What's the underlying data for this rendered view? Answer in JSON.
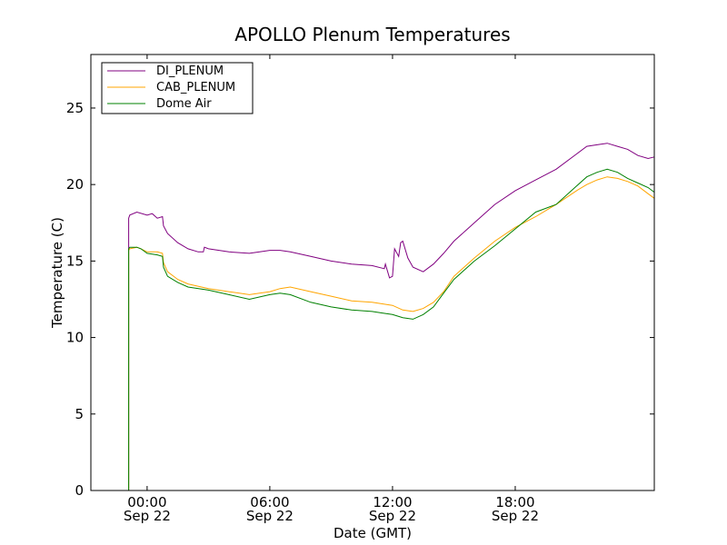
{
  "chart_data": {
    "type": "line",
    "title": "APOLLO Plenum Temperatures",
    "xlabel": "Date (GMT)",
    "ylabel": "Temperature (C)",
    "xlim": [
      -2.75,
      24.8
    ],
    "ylim": [
      0,
      28.5
    ],
    "grid": false,
    "legend_position": "top-left",
    "y_ticks": [
      {
        "value": 0,
        "label": "0"
      },
      {
        "value": 5,
        "label": "5"
      },
      {
        "value": 10,
        "label": "10"
      },
      {
        "value": 15,
        "label": "15"
      },
      {
        "value": 20,
        "label": "20"
      },
      {
        "value": 25,
        "label": "25"
      }
    ],
    "x_ticks": [
      {
        "value": 0,
        "time": "00:00",
        "date": "Sep 22"
      },
      {
        "value": 6,
        "time": "06:00",
        "date": "Sep 22"
      },
      {
        "value": 12,
        "time": "12:00",
        "date": "Sep 22"
      },
      {
        "value": 18,
        "time": "18:00",
        "date": "Sep 22"
      }
    ],
    "series": [
      {
        "name": "DI_PLENUM",
        "color": "#800080",
        "x": [
          -2.75,
          -0.9,
          -0.9,
          -0.85,
          -0.5,
          0,
          0.25,
          0.5,
          0.75,
          0.8,
          1.0,
          1.5,
          2.0,
          2.5,
          2.75,
          2.8,
          3.0,
          4.0,
          5.0,
          5.5,
          6.0,
          6.5,
          7.0,
          8.0,
          9.0,
          10.0,
          11.0,
          11.6,
          11.65,
          11.85,
          12.0,
          12.1,
          12.3,
          12.4,
          12.5,
          12.75,
          13.0,
          13.5,
          14.0,
          14.5,
          15.0,
          16.0,
          17.0,
          18.0,
          19.0,
          20.0,
          21.0,
          21.5,
          22.0,
          22.5,
          23.0,
          23.5,
          24.0,
          24.5,
          24.8
        ],
        "y": [
          0,
          0,
          17.8,
          18.0,
          18.2,
          18.0,
          18.1,
          17.8,
          17.9,
          17.3,
          16.8,
          16.2,
          15.8,
          15.6,
          15.6,
          15.9,
          15.8,
          15.6,
          15.5,
          15.6,
          15.7,
          15.7,
          15.6,
          15.3,
          15.0,
          14.8,
          14.7,
          14.5,
          14.8,
          13.9,
          14.0,
          15.8,
          15.3,
          16.2,
          16.3,
          15.2,
          14.6,
          14.3,
          14.8,
          15.5,
          16.3,
          17.5,
          18.7,
          19.6,
          20.3,
          21.0,
          22.0,
          22.5,
          22.6,
          22.7,
          22.5,
          22.3,
          21.9,
          21.7,
          21.8
        ]
      },
      {
        "name": "CAB_PLENUM",
        "color": "#FFA500",
        "x": [
          -2.75,
          -0.9,
          -0.9,
          -0.85,
          -0.5,
          -0.3,
          0,
          0.5,
          0.75,
          0.8,
          1.0,
          1.5,
          2.0,
          3.0,
          4.0,
          5.0,
          6.0,
          6.5,
          7.0,
          8.0,
          9.0,
          10.0,
          11.0,
          11.5,
          12.0,
          12.5,
          13.0,
          13.5,
          14.0,
          14.5,
          15.0,
          16.0,
          17.0,
          18.0,
          19.0,
          20.0,
          21.0,
          21.5,
          22.0,
          22.5,
          23.0,
          23.5,
          24.0,
          24.5,
          24.8
        ],
        "y": [
          0,
          0,
          15.7,
          15.8,
          15.9,
          15.8,
          15.6,
          15.6,
          15.5,
          14.9,
          14.3,
          13.8,
          13.5,
          13.2,
          13.0,
          12.8,
          13.0,
          13.2,
          13.3,
          13.0,
          12.7,
          12.4,
          12.3,
          12.2,
          12.1,
          11.8,
          11.7,
          11.9,
          12.3,
          13.0,
          14.0,
          15.2,
          16.3,
          17.2,
          17.9,
          18.7,
          19.6,
          20.0,
          20.3,
          20.5,
          20.4,
          20.2,
          19.9,
          19.4,
          19.1
        ]
      },
      {
        "name": "Dome Air",
        "color": "#008000",
        "x": [
          -2.75,
          -0.9,
          -0.9,
          -0.85,
          -0.5,
          -0.3,
          0,
          0.5,
          0.75,
          0.8,
          1.0,
          1.5,
          2.0,
          3.0,
          4.0,
          5.0,
          6.0,
          6.5,
          7.0,
          8.0,
          9.0,
          10.0,
          11.0,
          11.5,
          12.0,
          12.5,
          13.0,
          13.5,
          14.0,
          14.5,
          15.0,
          16.0,
          17.0,
          18.0,
          19.0,
          20.0,
          21.0,
          21.5,
          22.0,
          22.5,
          23.0,
          23.5,
          24.0,
          24.5,
          24.8
        ],
        "y": [
          0,
          0,
          15.8,
          15.9,
          15.9,
          15.8,
          15.5,
          15.4,
          15.3,
          14.6,
          14.0,
          13.6,
          13.3,
          13.1,
          12.8,
          12.5,
          12.8,
          12.9,
          12.8,
          12.3,
          12.0,
          11.8,
          11.7,
          11.6,
          11.5,
          11.3,
          11.2,
          11.5,
          12.0,
          12.9,
          13.8,
          15.0,
          16.0,
          17.1,
          18.2,
          18.7,
          19.9,
          20.5,
          20.8,
          21.0,
          20.8,
          20.4,
          20.1,
          19.8,
          19.5
        ]
      }
    ]
  }
}
